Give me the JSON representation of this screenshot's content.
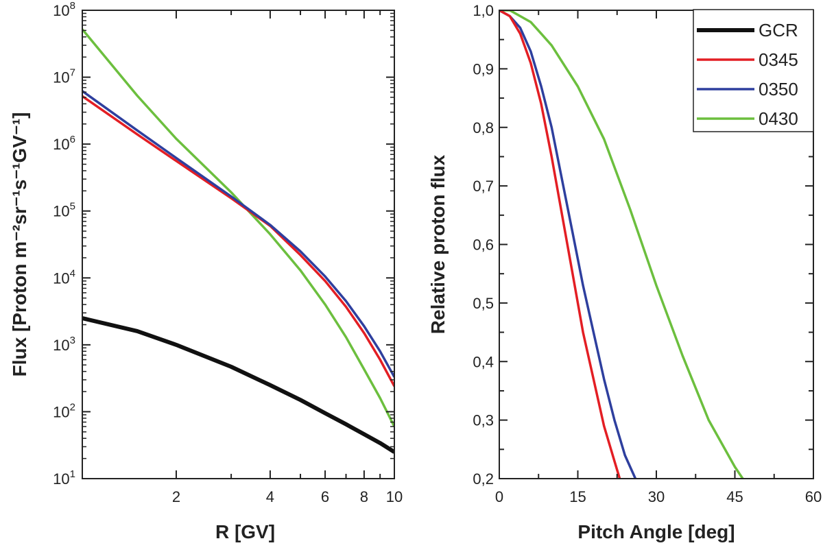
{
  "chart_data": [
    {
      "type": "line",
      "xscale": "log",
      "yscale": "log",
      "xlabel": "R [GV]",
      "ylabel": "Flux [Proton m⁻²sr⁻¹s⁻¹GV⁻¹]",
      "xlim": [
        1,
        10
      ],
      "ylim": [
        10,
        100000000
      ],
      "xticks": [
        2,
        4,
        6,
        8,
        10
      ],
      "xtick_labels": [
        "2",
        "4",
        "6",
        "8",
        "10"
      ],
      "yticks": [
        {
          "value": 10,
          "base": "10",
          "exp": "1"
        },
        {
          "value": 100,
          "base": "10",
          "exp": "2"
        },
        {
          "value": 1000,
          "base": "10",
          "exp": "3"
        },
        {
          "value": 10000,
          "base": "10",
          "exp": "4"
        },
        {
          "value": 100000,
          "base": "10",
          "exp": "5"
        },
        {
          "value": 1000000,
          "base": "10",
          "exp": "6"
        },
        {
          "value": 10000000,
          "base": "10",
          "exp": "7"
        },
        {
          "value": 100000000,
          "base": "10",
          "exp": "8"
        }
      ],
      "grid": false,
      "series": [
        {
          "name": "GCR",
          "color": "#111111",
          "x": [
            1,
            1.5,
            2,
            3,
            4,
            5,
            6,
            7,
            8,
            9,
            10
          ],
          "y": [
            2500,
            1600,
            1000,
            470,
            250,
            150,
            95,
            65,
            46,
            34,
            25
          ]
        },
        {
          "name": "0345",
          "color": "#e31e24",
          "x": [
            1,
            1.5,
            2,
            3,
            4,
            5,
            6,
            7,
            8,
            9,
            10
          ],
          "y": [
            5200000,
            1400000,
            560000,
            155000,
            60000,
            22000,
            9000,
            3700,
            1500,
            600,
            240
          ]
        },
        {
          "name": "0350",
          "color": "#2e3f9e",
          "x": [
            1,
            1.5,
            2,
            3,
            4,
            5,
            6,
            7,
            8,
            9,
            10
          ],
          "y": [
            6200000,
            1600000,
            620000,
            165000,
            62000,
            25000,
            10500,
            4500,
            1900,
            800,
            330
          ]
        },
        {
          "name": "0430",
          "color": "#6cbf3e",
          "x": [
            1,
            1.5,
            2,
            3,
            4,
            5,
            6,
            7,
            8,
            9,
            10
          ],
          "y": [
            52000000,
            5300000,
            1200000,
            190000,
            45000,
            13000,
            4000,
            1300,
            430,
            160,
            60
          ]
        }
      ]
    },
    {
      "type": "line",
      "xlabel": "Pitch Angle [deg]",
      "ylabel": "Relative proton flux",
      "xlim": [
        0,
        60
      ],
      "ylim": [
        0.2,
        1.0
      ],
      "xticks": [
        0,
        15,
        30,
        45,
        60
      ],
      "xtick_labels": [
        "0",
        "15",
        "30",
        "45",
        "60"
      ],
      "yticks": [
        0.2,
        0.3,
        0.4,
        0.5,
        0.6,
        0.7,
        0.8,
        0.9,
        1.0
      ],
      "ytick_labels": [
        "0,2",
        "0,3",
        "0,4",
        "0,5",
        "0,6",
        "0,7",
        "0,8",
        "0,9",
        "1,0"
      ],
      "grid": false,
      "legend": "top-right",
      "series": [
        {
          "name": "GCR",
          "color": "#111111",
          "x": [],
          "y": []
        },
        {
          "name": "0345",
          "color": "#e31e24",
          "x": [
            0,
            2,
            4,
            6,
            8,
            10,
            12,
            14,
            16,
            18,
            20,
            22,
            23
          ],
          "y": [
            1.0,
            0.99,
            0.96,
            0.91,
            0.84,
            0.75,
            0.65,
            0.55,
            0.45,
            0.37,
            0.29,
            0.23,
            0.2
          ]
        },
        {
          "name": "0350",
          "color": "#2e3f9e",
          "x": [
            0,
            2,
            4,
            6,
            8,
            10,
            12,
            14,
            16,
            18,
            20,
            22,
            24,
            26
          ],
          "y": [
            1.0,
            0.99,
            0.97,
            0.93,
            0.87,
            0.8,
            0.71,
            0.62,
            0.53,
            0.45,
            0.37,
            0.3,
            0.24,
            0.2
          ]
        },
        {
          "name": "0430",
          "color": "#6cbf3e",
          "x": [
            0,
            2,
            4,
            6,
            8,
            10,
            15,
            20,
            25,
            30,
            35,
            40,
            45,
            46.5
          ],
          "y": [
            1.0,
            1.0,
            0.99,
            0.98,
            0.96,
            0.94,
            0.87,
            0.78,
            0.66,
            0.53,
            0.41,
            0.3,
            0.22,
            0.2
          ]
        }
      ]
    }
  ]
}
